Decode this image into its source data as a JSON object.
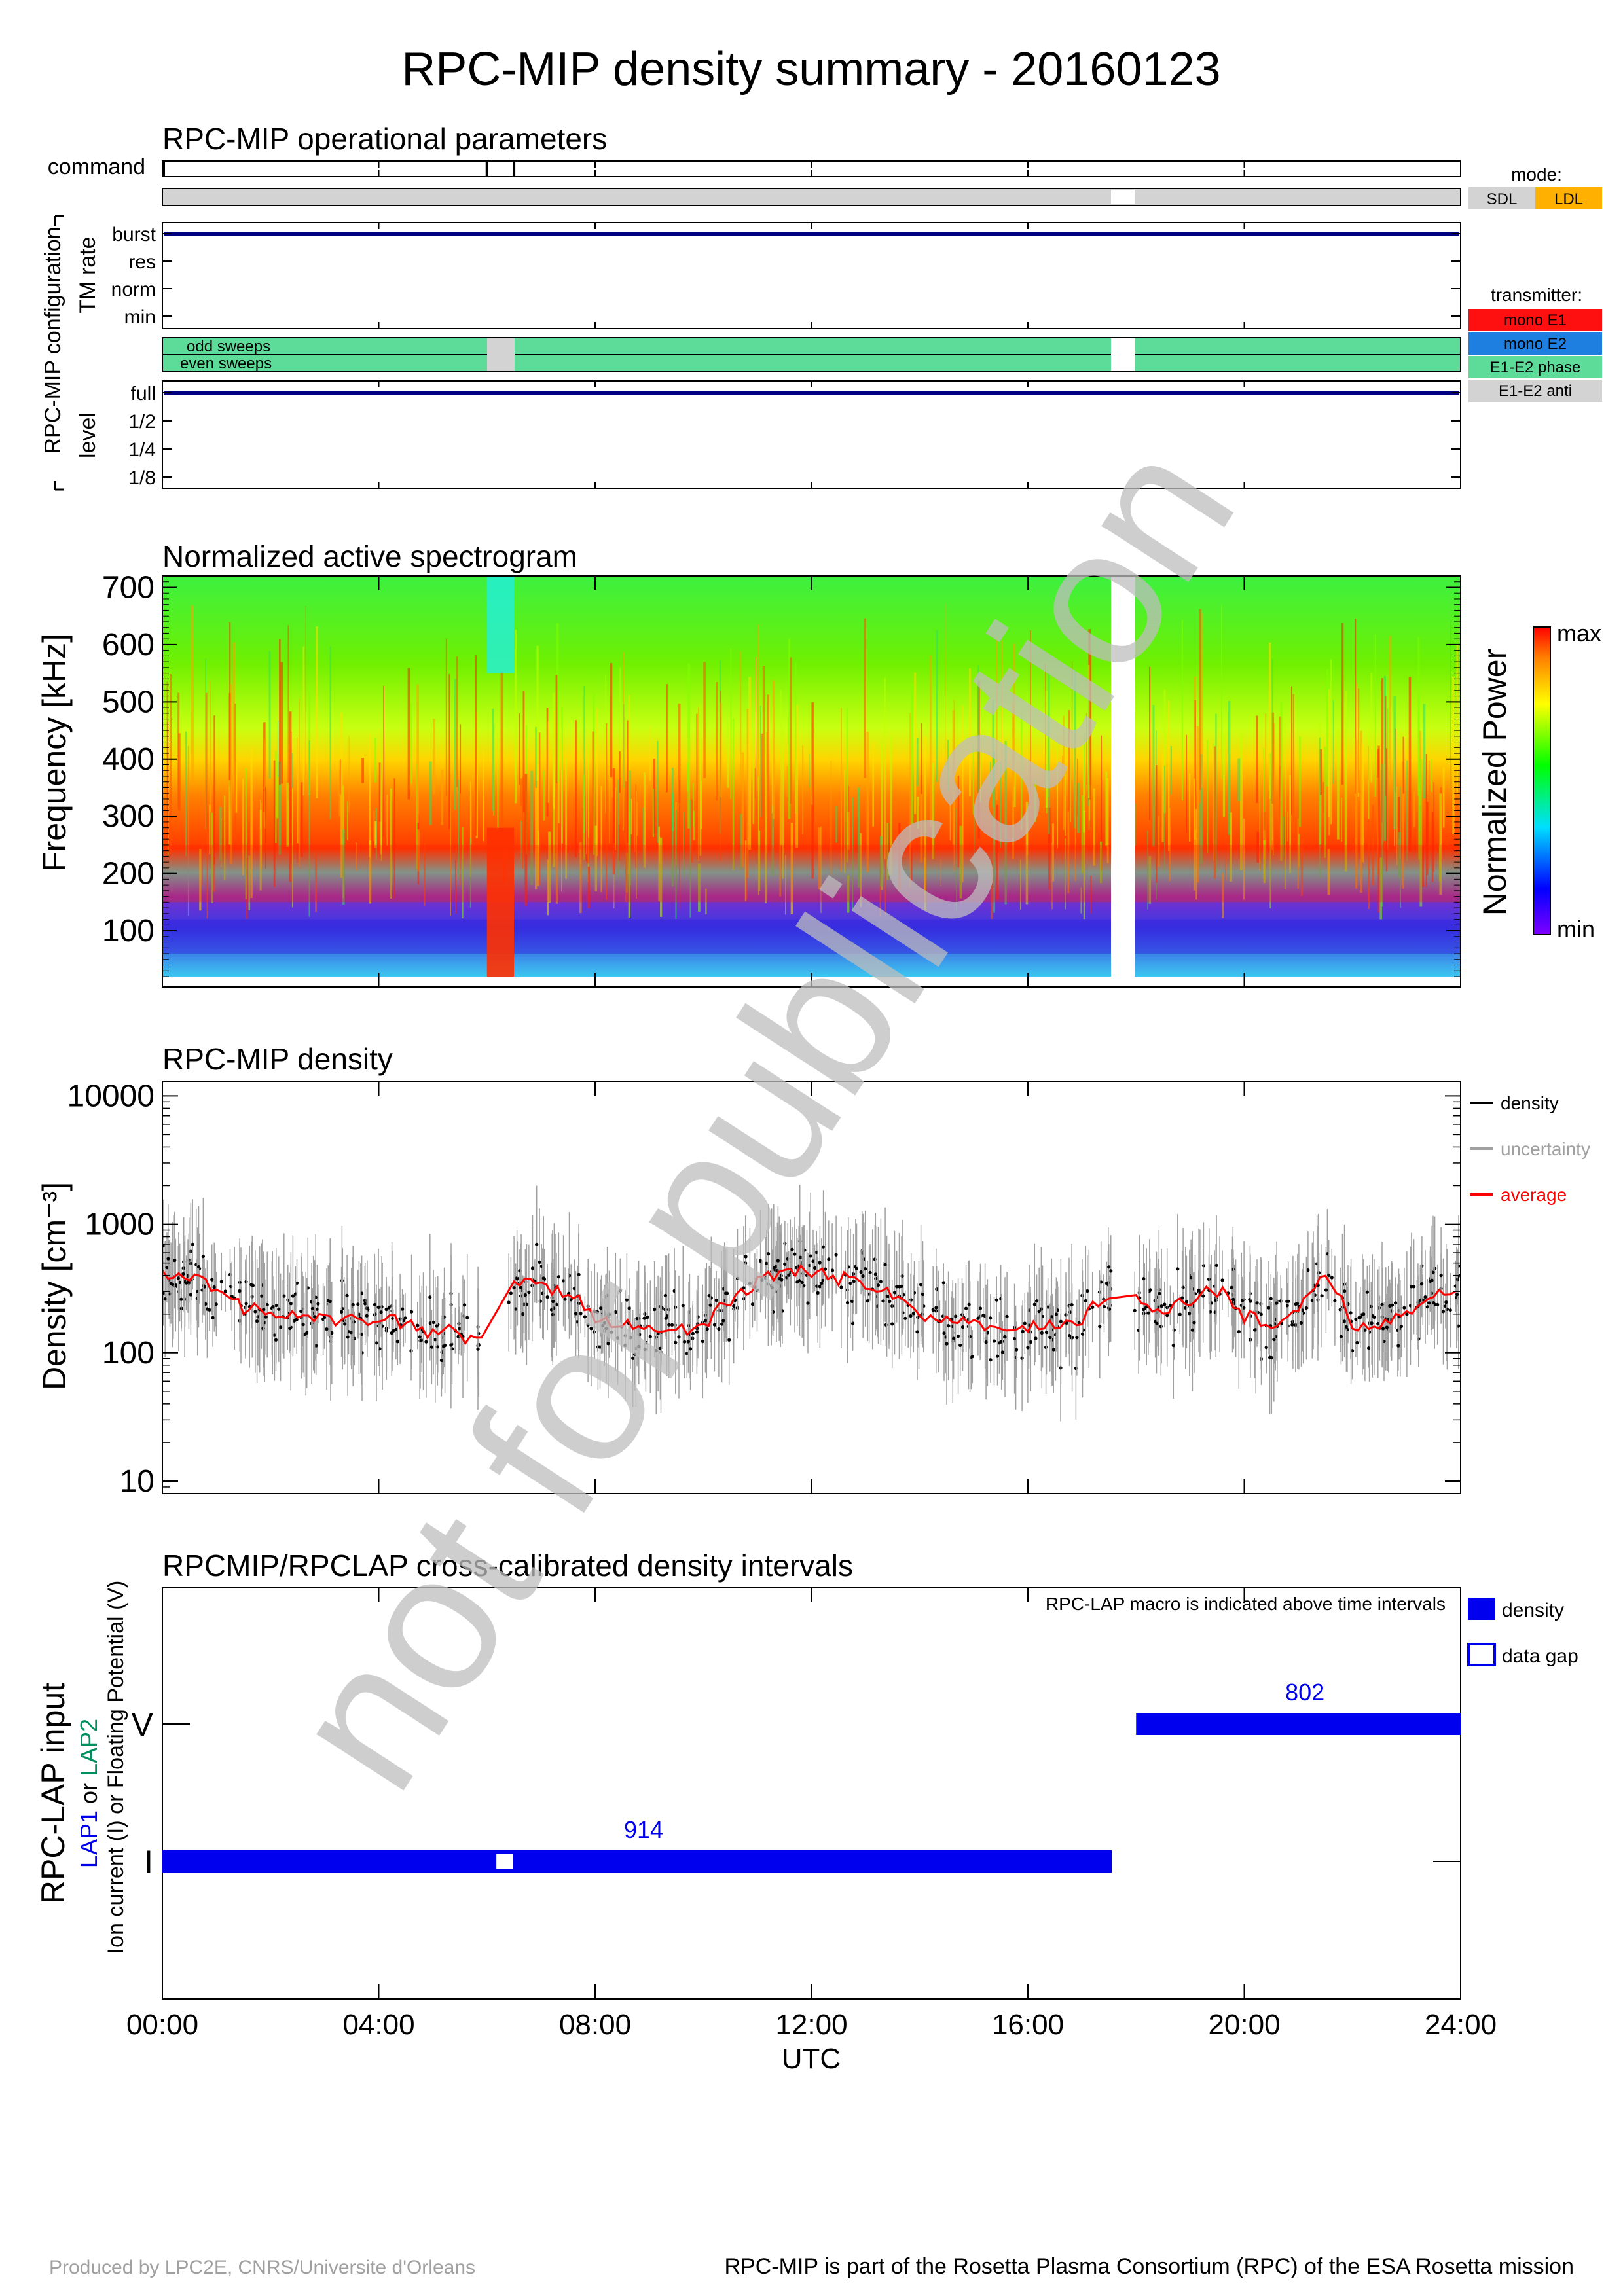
{
  "title": "RPC-MIP density summary - 20160123",
  "watermark": "not for publication",
  "ops": {
    "title": "RPC-MIP operational parameters",
    "command_label": "command",
    "config_label": "RPC-MIP configuration",
    "tm_label": "TM rate",
    "tm_levels": [
      "burst",
      "res",
      "norm",
      "min"
    ],
    "tm_value": "burst",
    "sweep_odd": "odd sweeps",
    "sweep_even": "even sweeps",
    "level_label": "level",
    "levels": [
      "full",
      "1/2",
      "1/4",
      "1/8"
    ],
    "level_value": "full",
    "mode_label": "mode:",
    "modes": [
      {
        "label": "SDL",
        "color": "#d3d3d3"
      },
      {
        "label": "LDL",
        "color": "#ffb000"
      }
    ],
    "transmitter_label": "transmitter:",
    "transmitters": [
      {
        "label": "mono E1",
        "color": "#ff1010"
      },
      {
        "label": "mono E2",
        "color": "#1f7fe0"
      },
      {
        "label": "E1-E2 phase",
        "color": "#5cdc98"
      },
      {
        "label": "E1-E2 anti",
        "color": "#d3d3d3"
      }
    ]
  },
  "spectrogram": {
    "title": "Normalized active spectrogram",
    "ylabel": "Frequency [kHz]",
    "yticks": [
      100,
      200,
      300,
      400,
      500,
      600,
      700
    ],
    "colorbar_label": "Normalized Power",
    "cb_max": "max",
    "cb_min": "min"
  },
  "density_panel": {
    "title": "RPC-MIP density",
    "ylabel": "Density [cm⁻³]",
    "yticks": [
      "10000",
      "1000",
      "100",
      "10"
    ],
    "legend": [
      {
        "label": "density",
        "color": "#000000"
      },
      {
        "label": "uncertainty",
        "color": "#a0a0a0"
      },
      {
        "label": "average",
        "color": "#ff0000"
      }
    ]
  },
  "lap": {
    "title": "RPCMIP/RPCLAP cross-calibrated density intervals",
    "note": "RPC-LAP macro is indicated above time intervals",
    "ylabel_main": "RPC-LAP input",
    "ylabel_lap1": "LAP1",
    "ylabel_or": " or ",
    "ylabel_lap2": "LAP2",
    "ylabel_sub": "Ion current (I) or Floating Potential (V)",
    "yticks": [
      "V",
      "I"
    ],
    "legend_density": "density",
    "legend_gap": "data gap",
    "macro_I": "914",
    "macro_V": "802"
  },
  "xaxis": {
    "ticks": [
      "00:00",
      "04:00",
      "08:00",
      "12:00",
      "16:00",
      "20:00",
      "24:00"
    ],
    "label": "UTC"
  },
  "footer_left": "Produced by LPC2E, CNRS/Universite d'Orleans",
  "footer_right": "RPC-MIP is part of the Rosetta Plasma Consortium (RPC) of the ESA Rosetta mission",
  "chart_data": [
    {
      "type": "table",
      "title": "RPC-MIP operational parameters",
      "command_times_h": [
        0.0,
        6.0,
        6.5
      ],
      "mode": "SDL",
      "tm_rate": "burst",
      "transmitter": "E1-E2 phase",
      "level": "full",
      "data_gaps_h": [
        [
          17.55,
          17.95
        ]
      ],
      "sweep_gray_interval_h": [
        6.0,
        6.5
      ]
    },
    {
      "type": "heatmap",
      "title": "Normalized active spectrogram",
      "ylabel": "Frequency [kHz]",
      "ylim": [
        20,
        720
      ],
      "xlim": [
        0,
        24
      ],
      "data_gap_h": [
        17.55,
        17.95
      ],
      "peak_band_khz": [
        150,
        250
      ]
    },
    {
      "type": "scatter",
      "title": "RPC-MIP density",
      "ylabel": "Density [cm-3]",
      "yscale": "log",
      "ylim": [
        8,
        13000
      ],
      "xlim": [
        0,
        24
      ],
      "legend_position": "right",
      "average": {
        "x": [
          0,
          0.5,
          1,
          1.5,
          2,
          3,
          4,
          4.5,
          5,
          5.5,
          5.9,
          6.5,
          7,
          7.5,
          8,
          8.5,
          9,
          9.5,
          10,
          10.5,
          11,
          11.5,
          12,
          12.5,
          13,
          13.5,
          14,
          14.5,
          15,
          15.5,
          16,
          16.5,
          17,
          17.5,
          18,
          18.5,
          19,
          19.5,
          20,
          20.5,
          21,
          21.5,
          22,
          22.5,
          23,
          23.5,
          24
        ],
        "y": [
          400,
          380,
          300,
          230,
          200,
          190,
          180,
          170,
          150,
          140,
          130,
          320,
          360,
          300,
          180,
          160,
          150,
          160,
          170,
          250,
          350,
          420,
          430,
          400,
          350,
          300,
          200,
          180,
          170,
          160,
          150,
          160,
          180,
          300,
          250,
          200,
          250,
          300,
          200,
          150,
          220,
          400,
          150,
          160,
          200,
          280,
          320
        ]
      },
      "gap_h": [
        [
          5.9,
          6.4
        ],
        [
          17.55,
          17.95
        ]
      ]
    },
    {
      "type": "bar",
      "title": "RPCMIP/RPCLAP cross-calibrated density intervals",
      "categories": [
        "I",
        "V"
      ],
      "series": [
        {
          "name": "density",
          "intervals_h": [
            [
              [
                0,
                17.55
              ]
            ],
            [
              [
                18.0,
                24.0
              ]
            ]
          ]
        }
      ],
      "data_gap_h": [
        [
          6.15,
          6.5
        ]
      ],
      "macros": {
        "I": "914",
        "V": "802"
      }
    }
  ]
}
